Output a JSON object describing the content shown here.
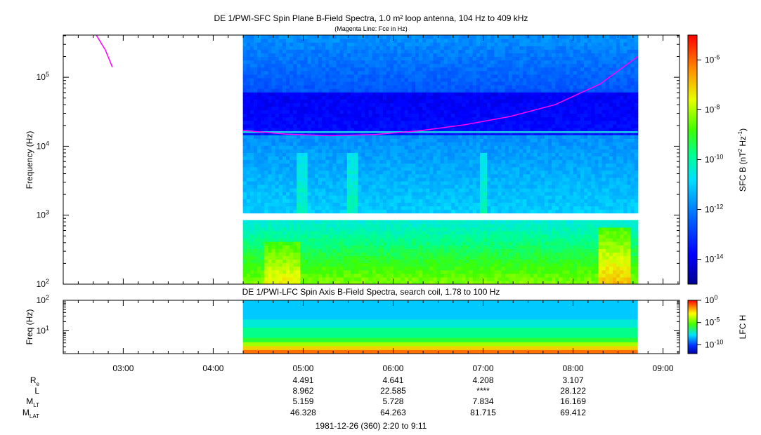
{
  "colors": {
    "magenta": "#ff00ff",
    "panel_border": "#000000",
    "gap": "#ffffff"
  },
  "chart_data": [
    {
      "type": "heatmap",
      "title": "DE 1/PWI-SFC  Spin Plane B-Field Spectra, 1.0 m² loop antenna, 104 Hz to 409 kHz",
      "subtitle": "(Magenta Line: Fce in Hz)",
      "ylabel": "Frequency (Hz)",
      "yscale": "log",
      "ylim": [
        100,
        409000
      ],
      "yticks": [
        {
          "value": 100,
          "base": "10",
          "exp": "2"
        },
        {
          "value": 1000,
          "base": "10",
          "exp": "3"
        },
        {
          "value": 10000,
          "base": "10",
          "exp": "4"
        },
        {
          "value": 100000,
          "base": "10",
          "exp": "5"
        }
      ],
      "xlim_hours": [
        2.333,
        9.183
      ],
      "data_start_hour": 4.33,
      "data_end_hour": 8.72,
      "band_gap_hz": [
        900,
        1050
      ],
      "colorbar": {
        "label": "SFC B (nT² Hz⁻¹)",
        "label_main": "SFC B (nT",
        "label_sup1": "2",
        "label_mid": " Hz",
        "label_sup2": "-1",
        "label_end": ")",
        "scale": "log",
        "range": [
          1e-15,
          1e-05
        ],
        "ticks": [
          {
            "value": 1e-14,
            "base": "10",
            "exp": "-14"
          },
          {
            "value": 1e-12,
            "base": "10",
            "exp": "-12"
          },
          {
            "value": 1e-10,
            "base": "10",
            "exp": "-10"
          },
          {
            "value": 1e-08,
            "base": "10",
            "exp": "-8"
          },
          {
            "value": 1e-06,
            "base": "10",
            "exp": "-6"
          }
        ]
      },
      "fce_line": {
        "name": "Fce in Hz",
        "points": [
          {
            "hour": 2.7,
            "hz": 409000
          },
          {
            "hour": 2.8,
            "hz": 250000
          },
          {
            "hour": 2.88,
            "hz": 140000
          },
          {
            "hour": 4.33,
            "hz": 17000
          },
          {
            "hour": 4.8,
            "hz": 15000
          },
          {
            "hour": 5.3,
            "hz": 14200
          },
          {
            "hour": 5.8,
            "hz": 14800
          },
          {
            "hour": 6.3,
            "hz": 16800
          },
          {
            "hour": 6.8,
            "hz": 20500
          },
          {
            "hour": 7.3,
            "hz": 27000
          },
          {
            "hour": 7.8,
            "hz": 40000
          },
          {
            "hour": 8.3,
            "hz": 80000
          },
          {
            "hour": 8.72,
            "hz": 200000
          }
        ]
      }
    },
    {
      "type": "heatmap",
      "title": "DE 1/PWI-LFC  Spin Axis B-Field Spectra, search coil, 1.78 to 100 Hz",
      "ylabel": "Freq (Hz)",
      "yscale": "log",
      "ylim": [
        1.78,
        100
      ],
      "yticks": [
        {
          "value": 10,
          "base": "10",
          "exp": "1"
        },
        {
          "value": 100,
          "base": "10",
          "exp": "2"
        }
      ],
      "data_start_hour": 4.33,
      "data_end_hour": 8.72,
      "colorbar": {
        "label": "LFC H",
        "scale": "log",
        "range": [
          1e-12,
          1
        ],
        "ticks": [
          {
            "value": 1e-10,
            "base": "10",
            "exp": "-10"
          },
          {
            "value": 1e-05,
            "base": "10",
            "exp": "-5"
          },
          {
            "value": 1,
            "base": "10",
            "exp": "0"
          }
        ]
      },
      "bands": [
        {
          "from_hz": 1.78,
          "to_hz": 2.4,
          "value": 0.05
        },
        {
          "from_hz": 2.4,
          "to_hz": 3.2,
          "value": 0.003
        },
        {
          "from_hz": 3.2,
          "to_hz": 4.3,
          "value": 0.0002
        },
        {
          "from_hz": 4.3,
          "to_hz": 6.0,
          "value": 1e-05
        },
        {
          "from_hz": 6.0,
          "to_hz": 13.0,
          "value": 2e-06
        },
        {
          "from_hz": 13.0,
          "to_hz": 24.0,
          "value": 3e-07
        },
        {
          "from_hz": 24.0,
          "to_hz": 100,
          "value": 5e-08
        }
      ]
    }
  ],
  "x_axis": {
    "ticks": [
      {
        "hour": 3,
        "label": "03:00"
      },
      {
        "hour": 4,
        "label": "04:00"
      },
      {
        "hour": 5,
        "label": "05:00"
      },
      {
        "hour": 6,
        "label": "06:00"
      },
      {
        "hour": 7,
        "label": "07:00"
      },
      {
        "hour": 8,
        "label": "08:00"
      },
      {
        "hour": 9,
        "label": "09:00"
      }
    ]
  },
  "ephemeris": {
    "rows": [
      {
        "label": "R",
        "sub": "e",
        "hours": [
          5,
          6,
          7,
          8
        ],
        "values": [
          "4.491",
          "4.641",
          "4.208",
          "3.107"
        ]
      },
      {
        "label": "L",
        "sub": "",
        "hours": [
          5,
          6,
          7,
          8
        ],
        "values": [
          "8.962",
          "22.585",
          "****",
          "28.122"
        ]
      },
      {
        "label": "M",
        "sub": "LT",
        "hours": [
          5,
          6,
          7,
          8
        ],
        "values": [
          "5.159",
          "5.728",
          "7.834",
          "16.169"
        ]
      },
      {
        "label": "M",
        "sub": "LAT",
        "hours": [
          5,
          6,
          7,
          8
        ],
        "values": [
          "46.328",
          "64.263",
          "81.715",
          "69.412"
        ]
      }
    ]
  },
  "footer": "1981-12-26 (360) 2:20 to 9:11"
}
